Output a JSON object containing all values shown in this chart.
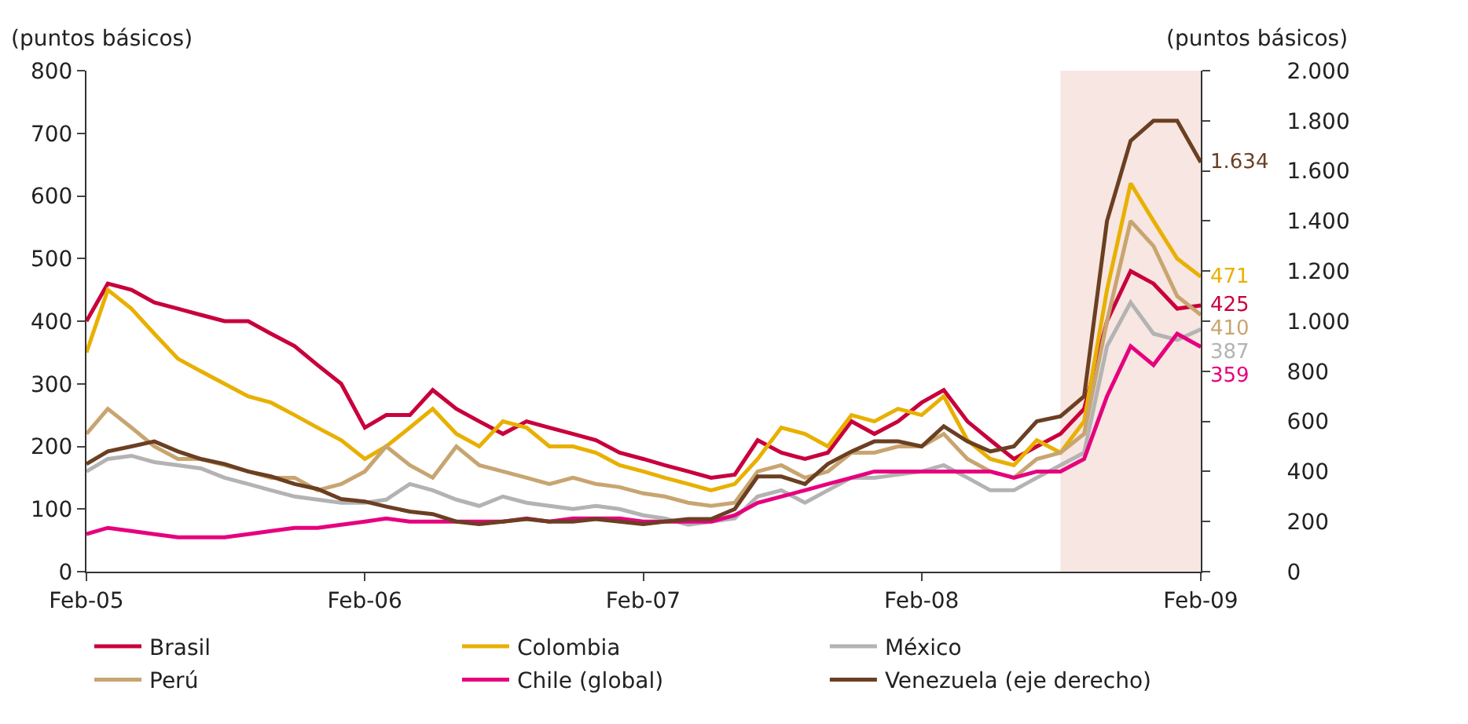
{
  "chart_data": {
    "type": "line",
    "ylabel": "(puntos básicos)",
    "y2label": "(puntos básicos)",
    "x": [
      "2005-02",
      "2005-03",
      "2005-04",
      "2005-05",
      "2005-06",
      "2005-07",
      "2005-08",
      "2005-09",
      "2005-10",
      "2005-11",
      "2005-12",
      "2006-01",
      "2006-02",
      "2006-03",
      "2006-04",
      "2006-05",
      "2006-06",
      "2006-07",
      "2006-08",
      "2006-09",
      "2006-10",
      "2006-11",
      "2006-12",
      "2007-01",
      "2007-02",
      "2007-03",
      "2007-04",
      "2007-05",
      "2007-06",
      "2007-07",
      "2007-08",
      "2007-09",
      "2007-10",
      "2007-11",
      "2007-12",
      "2008-01",
      "2008-02",
      "2008-03",
      "2008-04",
      "2008-05",
      "2008-06",
      "2008-07",
      "2008-08",
      "2008-09",
      "2008-10",
      "2008-11",
      "2008-12",
      "2009-01",
      "2009-02"
    ],
    "series": [
      {
        "name": "Brasil",
        "color": "#c8003c",
        "values": [
          400,
          460,
          450,
          430,
          420,
          410,
          400,
          400,
          380,
          360,
          330,
          300,
          230,
          250,
          250,
          290,
          260,
          240,
          220,
          240,
          230,
          220,
          210,
          190,
          180,
          170,
          160,
          150,
          155,
          210,
          190,
          180,
          190,
          240,
          220,
          240,
          270,
          290,
          240,
          210,
          180,
          200,
          220,
          260,
          400,
          480,
          460,
          420,
          425
        ],
        "value_labels": [
          null,
          null,
          null,
          null,
          null,
          null,
          null,
          null,
          null,
          null,
          null,
          null,
          null,
          null,
          null,
          null,
          null,
          null,
          null,
          null,
          null,
          null,
          null,
          null,
          null,
          null,
          null,
          null,
          null,
          null,
          null,
          null,
          null,
          null,
          null,
          null,
          null,
          null,
          null,
          null,
          null,
          null,
          null,
          null,
          null,
          null,
          null,
          null,
          "425"
        ]
      },
      {
        "name": "Colombia",
        "color": "#e8b000",
        "values": [
          350,
          450,
          420,
          380,
          340,
          320,
          300,
          280,
          270,
          250,
          230,
          210,
          180,
          200,
          230,
          260,
          220,
          200,
          240,
          230,
          200,
          200,
          190,
          170,
          160,
          150,
          140,
          130,
          140,
          180,
          230,
          220,
          200,
          250,
          240,
          260,
          250,
          280,
          210,
          180,
          170,
          210,
          190,
          240,
          450,
          620,
          560,
          500,
          471
        ],
        "value_labels": [
          null,
          null,
          null,
          null,
          null,
          null,
          null,
          null,
          null,
          null,
          null,
          null,
          null,
          null,
          null,
          null,
          null,
          null,
          null,
          null,
          null,
          null,
          null,
          null,
          null,
          null,
          null,
          null,
          null,
          null,
          null,
          null,
          null,
          null,
          null,
          null,
          null,
          null,
          null,
          null,
          null,
          null,
          null,
          null,
          null,
          null,
          null,
          null,
          "471"
        ]
      },
      {
        "name": "México",
        "color": "#b3b3b3",
        "values": [
          160,
          180,
          185,
          175,
          170,
          165,
          150,
          140,
          130,
          120,
          115,
          110,
          110,
          115,
          140,
          130,
          115,
          105,
          120,
          110,
          105,
          100,
          105,
          100,
          90,
          85,
          75,
          80,
          85,
          120,
          130,
          110,
          130,
          150,
          150,
          155,
          160,
          170,
          150,
          130,
          130,
          150,
          170,
          190,
          360,
          430,
          380,
          370,
          387
        ],
        "value_labels": [
          null,
          null,
          null,
          null,
          null,
          null,
          null,
          null,
          null,
          null,
          null,
          null,
          null,
          null,
          null,
          null,
          null,
          null,
          null,
          null,
          null,
          null,
          null,
          null,
          null,
          null,
          null,
          null,
          null,
          null,
          null,
          null,
          null,
          null,
          null,
          null,
          null,
          null,
          null,
          null,
          null,
          null,
          null,
          null,
          null,
          null,
          null,
          null,
          "387"
        ]
      },
      {
        "name": "Perú",
        "color": "#c8a570",
        "values": [
          220,
          260,
          230,
          200,
          180,
          180,
          170,
          160,
          150,
          150,
          130,
          140,
          160,
          200,
          170,
          150,
          200,
          170,
          160,
          150,
          140,
          150,
          140,
          135,
          125,
          120,
          110,
          105,
          110,
          160,
          170,
          150,
          160,
          190,
          190,
          200,
          200,
          220,
          180,
          160,
          150,
          180,
          190,
          220,
          400,
          560,
          520,
          440,
          410
        ],
        "value_labels": [
          null,
          null,
          null,
          null,
          null,
          null,
          null,
          null,
          null,
          null,
          null,
          null,
          null,
          null,
          null,
          null,
          null,
          null,
          null,
          null,
          null,
          null,
          null,
          null,
          null,
          null,
          null,
          null,
          null,
          null,
          null,
          null,
          null,
          null,
          null,
          null,
          null,
          null,
          null,
          null,
          null,
          null,
          null,
          null,
          null,
          null,
          null,
          null,
          "410"
        ]
      },
      {
        "name": "Chile (global)",
        "color": "#e6007e",
        "values": [
          60,
          70,
          65,
          60,
          55,
          55,
          55,
          60,
          65,
          70,
          70,
          75,
          80,
          85,
          80,
          80,
          80,
          80,
          80,
          85,
          80,
          85,
          85,
          85,
          80,
          80,
          80,
          80,
          90,
          110,
          120,
          130,
          140,
          150,
          160,
          160,
          160,
          160,
          160,
          160,
          150,
          160,
          160,
          180,
          280,
          360,
          330,
          380,
          359
        ],
        "value_labels": [
          null,
          null,
          null,
          null,
          null,
          null,
          null,
          null,
          null,
          null,
          null,
          null,
          null,
          null,
          null,
          null,
          null,
          null,
          null,
          null,
          null,
          null,
          null,
          null,
          null,
          null,
          null,
          null,
          null,
          null,
          null,
          null,
          null,
          null,
          null,
          null,
          null,
          null,
          null,
          null,
          null,
          null,
          null,
          null,
          null,
          null,
          null,
          null,
          "359"
        ]
      },
      {
        "name": "Venezuela (eje derecho)",
        "color": "#6b3f22",
        "axis": "y2",
        "values": [
          430,
          480,
          500,
          520,
          480,
          450,
          430,
          400,
          380,
          350,
          330,
          290,
          280,
          260,
          240,
          230,
          200,
          190,
          200,
          210,
          200,
          200,
          210,
          200,
          190,
          200,
          210,
          210,
          250,
          380,
          380,
          350,
          430,
          480,
          520,
          520,
          500,
          580,
          520,
          480,
          500,
          600,
          620,
          700,
          1400,
          1720,
          1800,
          1800,
          1634
        ],
        "value_labels": [
          null,
          null,
          null,
          null,
          null,
          null,
          null,
          null,
          null,
          null,
          null,
          null,
          null,
          null,
          null,
          null,
          null,
          null,
          null,
          null,
          null,
          null,
          null,
          null,
          null,
          null,
          null,
          null,
          null,
          null,
          null,
          null,
          null,
          null,
          null,
          null,
          null,
          null,
          null,
          null,
          null,
          null,
          null,
          null,
          null,
          null,
          null,
          null,
          "1.634"
        ]
      }
    ],
    "xlim": [
      "2005-02",
      "2009-02"
    ],
    "xticks": [
      {
        "value": "2005-02",
        "label": "Feb-05"
      },
      {
        "value": "2006-02",
        "label": "Feb-06"
      },
      {
        "value": "2007-02",
        "label": "Feb-07"
      },
      {
        "value": "2008-02",
        "label": "Feb-08"
      },
      {
        "value": "2009-02",
        "label": "Feb-09"
      }
    ],
    "ylim": [
      0,
      800
    ],
    "yticks": [
      0,
      100,
      200,
      300,
      400,
      500,
      600,
      700,
      800
    ],
    "y2lim": [
      0,
      2000
    ],
    "y2ticks": [
      {
        "value": 0,
        "label": "0"
      },
      {
        "value": 200,
        "label": "200"
      },
      {
        "value": 400,
        "label": "400"
      },
      {
        "value": 600,
        "label": "600"
      },
      {
        "value": 800,
        "label": "800"
      },
      {
        "value": 1000,
        "label": "1.000"
      },
      {
        "value": 1200,
        "label": "1.200"
      },
      {
        "value": 1400,
        "label": "1.400"
      },
      {
        "value": 1600,
        "label": "1.600"
      },
      {
        "value": 1800,
        "label": "1.800"
      },
      {
        "value": 2000,
        "label": "2.000"
      }
    ],
    "bands": [
      {
        "axis": "x",
        "from": "2008-08",
        "to": "2009-02",
        "color": "#f7e6e1"
      }
    ],
    "grid": false,
    "legend": "bottom",
    "marker": "none",
    "line_style": "solid"
  }
}
